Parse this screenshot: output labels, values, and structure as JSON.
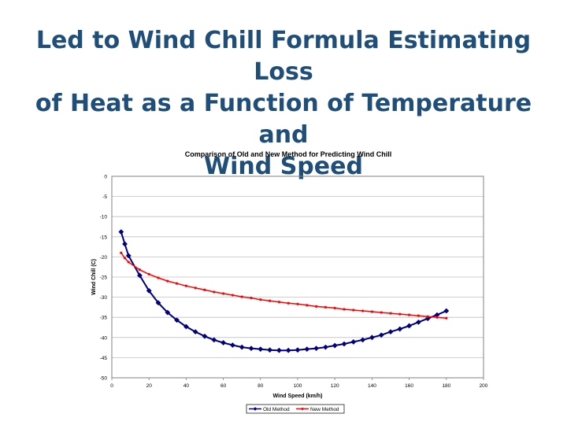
{
  "slide": {
    "title_lines": [
      "Led to Wind Chill Formula Estimating Loss",
      "of Heat as a Function of Temperature and",
      "Wind Speed"
    ]
  },
  "chart_data": {
    "type": "line",
    "title": "Comparison of Old and New Method for Predicting Wind Chill",
    "xlabel": "Wind Speed (km/h)",
    "ylabel": "Wind Chill (C)",
    "xlim": [
      0,
      200
    ],
    "ylim": [
      -50,
      0
    ],
    "xticks": [
      0,
      20,
      40,
      60,
      80,
      100,
      120,
      140,
      160,
      180,
      200
    ],
    "yticks": [
      0,
      -5,
      -10,
      -15,
      -20,
      -25,
      -30,
      -35,
      -40,
      -45,
      -50
    ],
    "grid": true,
    "legend_position": "bottom",
    "series": [
      {
        "name": "Old Method",
        "color": "#000080",
        "marker": "diamond",
        "x": [
          5,
          7,
          9,
          15,
          20,
          25,
          30,
          35,
          40,
          45,
          50,
          55,
          60,
          65,
          70,
          75,
          80,
          85,
          90,
          95,
          100,
          105,
          110,
          115,
          120,
          125,
          130,
          135,
          140,
          145,
          150,
          155,
          160,
          165,
          170,
          175,
          180
        ],
        "y": [
          -13.8,
          -16.8,
          -19.7,
          -24.6,
          -28.4,
          -31.4,
          -33.8,
          -35.7,
          -37.3,
          -38.6,
          -39.7,
          -40.6,
          -41.3,
          -41.9,
          -42.4,
          -42.7,
          -42.9,
          -43.1,
          -43.2,
          -43.2,
          -43.1,
          -42.9,
          -42.7,
          -42.4,
          -42.0,
          -41.6,
          -41.1,
          -40.6,
          -40.0,
          -39.4,
          -38.6,
          -37.9,
          -37.1,
          -36.2,
          -35.3,
          -34.4,
          -33.4
        ]
      },
      {
        "name": "New Method",
        "color": "#ff0000",
        "marker": "circle",
        "x": [
          5,
          7,
          9,
          15,
          20,
          25,
          30,
          35,
          40,
          45,
          50,
          55,
          60,
          65,
          70,
          75,
          80,
          85,
          90,
          95,
          100,
          105,
          110,
          115,
          120,
          125,
          130,
          135,
          140,
          145,
          150,
          155,
          160,
          165,
          170,
          175,
          180
        ],
        "y": [
          -19.0,
          -20.3,
          -21.3,
          -23.2,
          -24.3,
          -25.2,
          -26.0,
          -26.6,
          -27.2,
          -27.7,
          -28.2,
          -28.7,
          -29.1,
          -29.5,
          -29.9,
          -30.2,
          -30.6,
          -30.9,
          -31.2,
          -31.5,
          -31.7,
          -32.0,
          -32.3,
          -32.5,
          -32.7,
          -33.0,
          -33.2,
          -33.4,
          -33.6,
          -33.8,
          -34.0,
          -34.2,
          -34.4,
          -34.6,
          -34.8,
          -35.0,
          -35.2
        ]
      }
    ]
  }
}
